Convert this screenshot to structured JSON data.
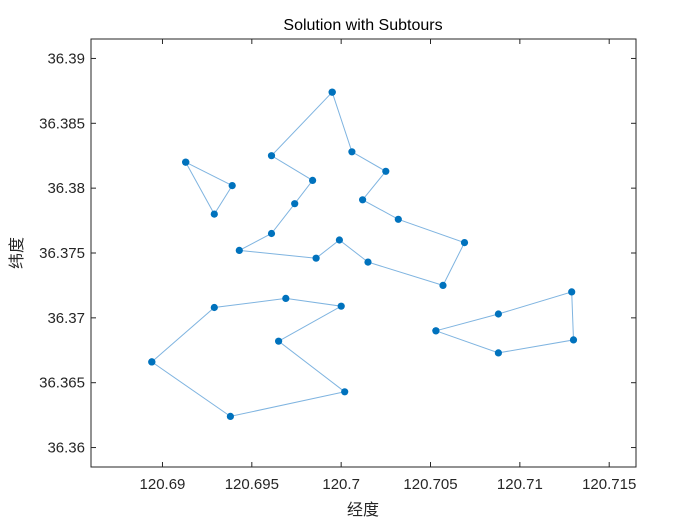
{
  "chart_data": {
    "type": "line",
    "title": "Solution with Subtours",
    "xlabel": "经度",
    "ylabel": "纬度",
    "xlim": [
      120.686,
      120.7165
    ],
    "ylim": [
      36.3585,
      36.3915
    ],
    "xticks": [
      120.69,
      120.695,
      120.7,
      120.705,
      120.71,
      120.715
    ],
    "xtick_labels": [
      "120.69",
      "120.695",
      "120.7",
      "120.705",
      "120.71",
      "120.715"
    ],
    "yticks": [
      36.36,
      36.365,
      36.37,
      36.375,
      36.38,
      36.385,
      36.39
    ],
    "ytick_labels": [
      "36.36",
      "36.365",
      "36.37",
      "36.375",
      "36.38",
      "36.385",
      "36.39"
    ],
    "grid": false,
    "line_color": "#7fb4e0",
    "marker_color": "#0072bd",
    "series": [
      {
        "x": [
          120.6913,
          120.6939,
          120.6929,
          120.6913
        ],
        "y": [
          36.382,
          36.3802,
          36.378,
          36.382
        ]
      },
      {
        "x": [
          120.6894,
          120.6929,
          120.6969,
          120.7,
          120.6965,
          120.7002,
          120.6938,
          120.6894
        ],
        "y": [
          36.3666,
          36.3708,
          36.3715,
          36.3709,
          36.3682,
          36.3643,
          36.3624,
          36.3666
        ]
      },
      {
        "x": [
          120.7053,
          120.7088,
          120.7129,
          120.713,
          120.7088,
          120.7053
        ],
        "y": [
          36.369,
          36.3703,
          36.372,
          36.3683,
          36.3673,
          36.369
        ]
      },
      {
        "x": [
          120.6995,
          120.6961,
          120.6984,
          120.6974,
          120.6961,
          120.6943,
          120.6986,
          120.6999,
          120.7015,
          120.7057,
          120.7069,
          120.7032,
          120.7012,
          120.7025,
          120.7006,
          120.6995
        ],
        "y": [
          36.3874,
          36.3825,
          36.3806,
          36.3788,
          36.3765,
          36.3752,
          36.3746,
          36.376,
          36.3743,
          36.3725,
          36.3758,
          36.3776,
          36.3791,
          36.3813,
          36.3828,
          36.3874
        ]
      }
    ]
  }
}
